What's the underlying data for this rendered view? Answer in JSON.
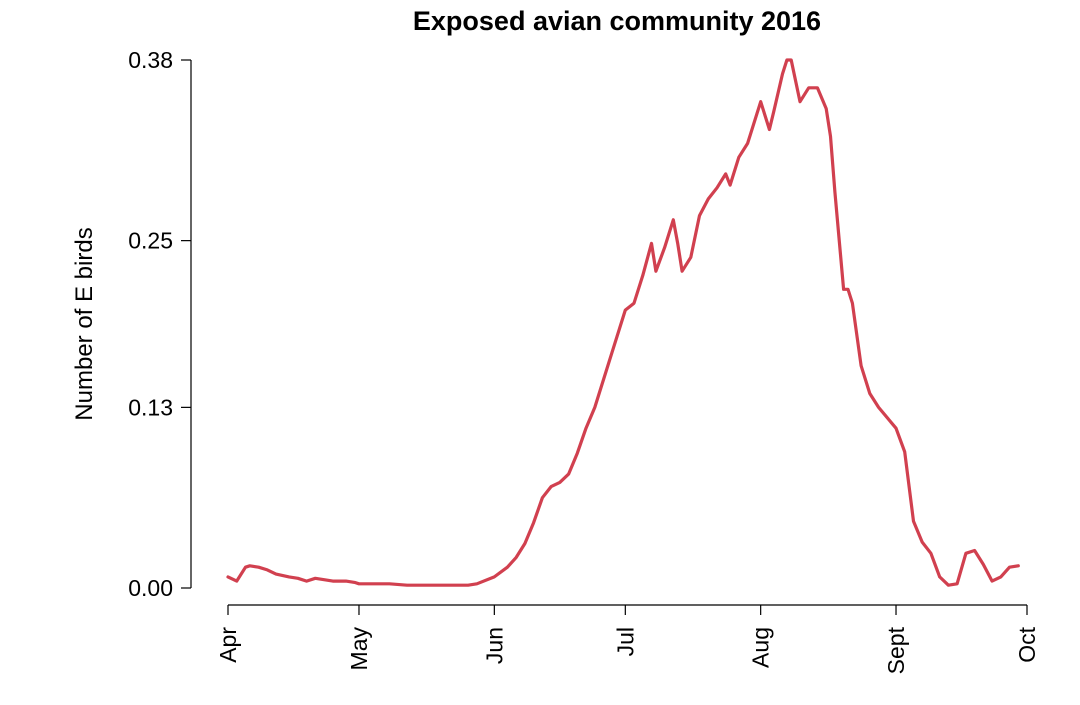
{
  "chart_data": {
    "type": "line",
    "title": "Exposed avian community 2016",
    "xlabel": "",
    "ylabel": "Number of E birds",
    "x_ticks": [
      "Apr",
      "May",
      "Jun",
      "Jul",
      "Aug",
      "Sept",
      "Oct"
    ],
    "y_ticks": [
      "0.00",
      "0.13",
      "0.25",
      "0.38"
    ],
    "ylim": [
      0,
      0.38
    ],
    "xlim": [
      "2016-04-01",
      "2016-10-01"
    ],
    "grid": false,
    "line_color": "#d1404f",
    "series": [
      {
        "x": [
          "2016-04-01",
          "2016-04-03",
          "2016-04-05",
          "2016-04-06",
          "2016-04-08",
          "2016-04-10",
          "2016-04-12",
          "2016-04-15",
          "2016-04-17",
          "2016-04-19",
          "2016-04-21",
          "2016-04-23",
          "2016-04-25",
          "2016-04-28",
          "2016-04-30",
          "2016-05-01",
          "2016-05-04",
          "2016-05-08",
          "2016-05-12",
          "2016-05-16",
          "2016-05-20",
          "2016-05-24",
          "2016-05-26",
          "2016-05-28",
          "2016-06-01",
          "2016-06-04",
          "2016-06-06",
          "2016-06-08",
          "2016-06-10",
          "2016-06-12",
          "2016-06-14",
          "2016-06-16",
          "2016-06-18",
          "2016-06-20",
          "2016-06-22",
          "2016-06-24",
          "2016-06-26",
          "2016-06-28",
          "2016-07-01",
          "2016-07-03",
          "2016-07-05",
          "2016-07-07",
          "2016-07-08",
          "2016-07-10",
          "2016-07-12",
          "2016-07-13",
          "2016-07-14",
          "2016-07-16",
          "2016-07-18",
          "2016-07-20",
          "2016-07-22",
          "2016-07-24",
          "2016-07-25",
          "2016-07-27",
          "2016-07-29",
          "2016-08-01",
          "2016-08-03",
          "2016-08-04",
          "2016-08-06",
          "2016-08-07",
          "2016-08-08",
          "2016-08-10",
          "2016-08-12",
          "2016-08-14",
          "2016-08-16",
          "2016-08-17",
          "2016-08-18",
          "2016-08-20",
          "2016-08-21",
          "2016-08-22",
          "2016-08-24",
          "2016-08-26",
          "2016-08-28",
          "2016-09-01",
          "2016-09-03",
          "2016-09-05",
          "2016-09-07",
          "2016-09-09",
          "2016-09-11",
          "2016-09-13",
          "2016-09-15",
          "2016-09-17",
          "2016-09-19",
          "2016-09-21",
          "2016-09-23",
          "2016-09-25",
          "2016-09-27",
          "2016-09-29"
        ],
        "values": [
          0.008,
          0.005,
          0.015,
          0.016,
          0.015,
          0.013,
          0.01,
          0.008,
          0.007,
          0.005,
          0.007,
          0.006,
          0.005,
          0.005,
          0.004,
          0.003,
          0.003,
          0.003,
          0.002,
          0.002,
          0.002,
          0.002,
          0.002,
          0.003,
          0.008,
          0.015,
          0.022,
          0.032,
          0.047,
          0.065,
          0.073,
          0.076,
          0.082,
          0.097,
          0.115,
          0.13,
          0.15,
          0.17,
          0.2,
          0.205,
          0.225,
          0.248,
          0.228,
          0.245,
          0.265,
          0.248,
          0.228,
          0.238,
          0.268,
          0.28,
          0.288,
          0.298,
          0.29,
          0.31,
          0.32,
          0.35,
          0.33,
          0.343,
          0.37,
          0.38,
          0.38,
          0.35,
          0.36,
          0.36,
          0.345,
          0.325,
          0.285,
          0.215,
          0.215,
          0.205,
          0.16,
          0.14,
          0.13,
          0.115,
          0.098,
          0.048,
          0.033,
          0.025,
          0.008,
          0.002,
          0.003,
          0.025,
          0.027,
          0.017,
          0.005,
          0.008,
          0.015,
          0.016
        ]
      }
    ]
  }
}
